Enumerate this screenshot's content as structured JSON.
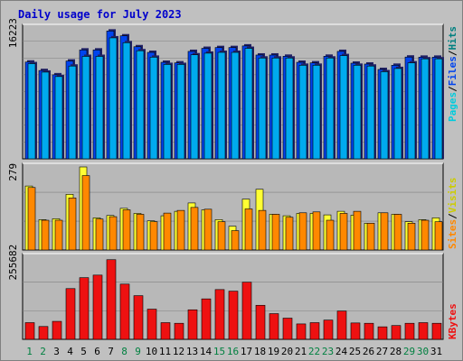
{
  "title": "Daily usage for July 2023",
  "colors": {
    "background": "#c0c0c0",
    "plot_background": "#b8b8b8",
    "gridline": "#808080",
    "title": "#0000cc",
    "hits": "#00aaee",
    "files": "#0044ee",
    "pages": "#00ccdd",
    "visits": "#ffff33",
    "sites": "#ff8800",
    "kbytes": "#ee1111",
    "weekday_label": "#000000",
    "weekend_label": "#008040"
  },
  "legend": {
    "top": {
      "pages": "Pages",
      "files": "Files",
      "hits": "Hits",
      "separator": "/"
    },
    "middle": {
      "sites": "Sites",
      "visits": "Visits",
      "separator": "/"
    },
    "bottom": {
      "kbytes": "KBytes"
    }
  },
  "chart_data": [
    {
      "type": "bar",
      "panel": "hits_files",
      "ytick": "16223",
      "ymax": 16223,
      "categories": [
        "1",
        "2",
        "3",
        "4",
        "5",
        "6",
        "7",
        "8",
        "9",
        "10",
        "11",
        "12",
        "13",
        "14",
        "15",
        "16",
        "17",
        "18",
        "19",
        "20",
        "21",
        "22",
        "23",
        "24",
        "25",
        "26",
        "27",
        "28",
        "29",
        "30",
        "31"
      ],
      "weekend_days": [
        "1",
        "2",
        "8",
        "9",
        "15",
        "16",
        "22",
        "23",
        "29",
        "30"
      ],
      "series": [
        {
          "name": "Hits",
          "values": [
            12000,
            10950,
            10420,
            12130,
            13500,
            13500,
            15850,
            15250,
            13900,
            13200,
            11970,
            11900,
            13320,
            13700,
            13800,
            13800,
            14000,
            12870,
            12870,
            12720,
            11970,
            11900,
            12720,
            13320,
            11860,
            11750,
            11080,
            11600,
            12620,
            12600,
            12600
          ]
        },
        {
          "name": "Files",
          "values": [
            11800,
            10750,
            10200,
            11500,
            12700,
            12700,
            15000,
            14400,
            13400,
            12600,
            11700,
            11700,
            12900,
            13100,
            13200,
            13200,
            13700,
            12500,
            12500,
            12500,
            11600,
            11600,
            12500,
            12800,
            11600,
            11500,
            10800,
            11200,
            11900,
            12400,
            12400
          ]
        }
      ]
    },
    {
      "type": "bar",
      "panel": "visits_sites",
      "ytick": "279",
      "ymax": 279,
      "categories": [
        "1",
        "2",
        "3",
        "4",
        "5",
        "6",
        "7",
        "8",
        "9",
        "10",
        "11",
        "12",
        "13",
        "14",
        "15",
        "16",
        "17",
        "18",
        "19",
        "20",
        "21",
        "22",
        "23",
        "24",
        "25",
        "26",
        "27",
        "28",
        "29",
        "30",
        "31"
      ],
      "series": [
        {
          "name": "Visits",
          "values": [
            215,
            102,
            105,
            187,
            279,
            108,
            116,
            140,
            123,
            98,
            115,
            130,
            158,
            135,
            102,
            80,
            171,
            204,
            120,
            115,
            123,
            123,
            118,
            130,
            117,
            90,
            125,
            120,
            95,
            102,
            108
          ]
        },
        {
          "name": "Sites",
          "values": [
            210,
            100,
            100,
            175,
            250,
            104,
            112,
            135,
            120,
            95,
            124,
            133,
            143,
            137,
            95,
            65,
            138,
            133,
            120,
            110,
            125,
            128,
            100,
            123,
            130,
            90,
            125,
            120,
            90,
            100,
            95
          ]
        }
      ]
    },
    {
      "type": "bar",
      "panel": "kbytes",
      "ytick": "255682",
      "ymax": 255682,
      "categories": [
        "1",
        "2",
        "3",
        "4",
        "5",
        "6",
        "7",
        "8",
        "9",
        "10",
        "11",
        "12",
        "13",
        "14",
        "15",
        "16",
        "17",
        "18",
        "19",
        "20",
        "21",
        "22",
        "23",
        "24",
        "25",
        "26",
        "27",
        "28",
        "29",
        "30",
        "31"
      ],
      "series": [
        {
          "name": "KBytes",
          "values": [
            52000,
            40000,
            56000,
            158000,
            192000,
            200000,
            248000,
            172000,
            136000,
            94000,
            52000,
            50000,
            92000,
            126000,
            155000,
            150000,
            178000,
            106000,
            80000,
            66000,
            48000,
            52000,
            60000,
            88000,
            51000,
            50000,
            39000,
            43000,
            50000,
            52000,
            50000
          ]
        }
      ]
    }
  ]
}
